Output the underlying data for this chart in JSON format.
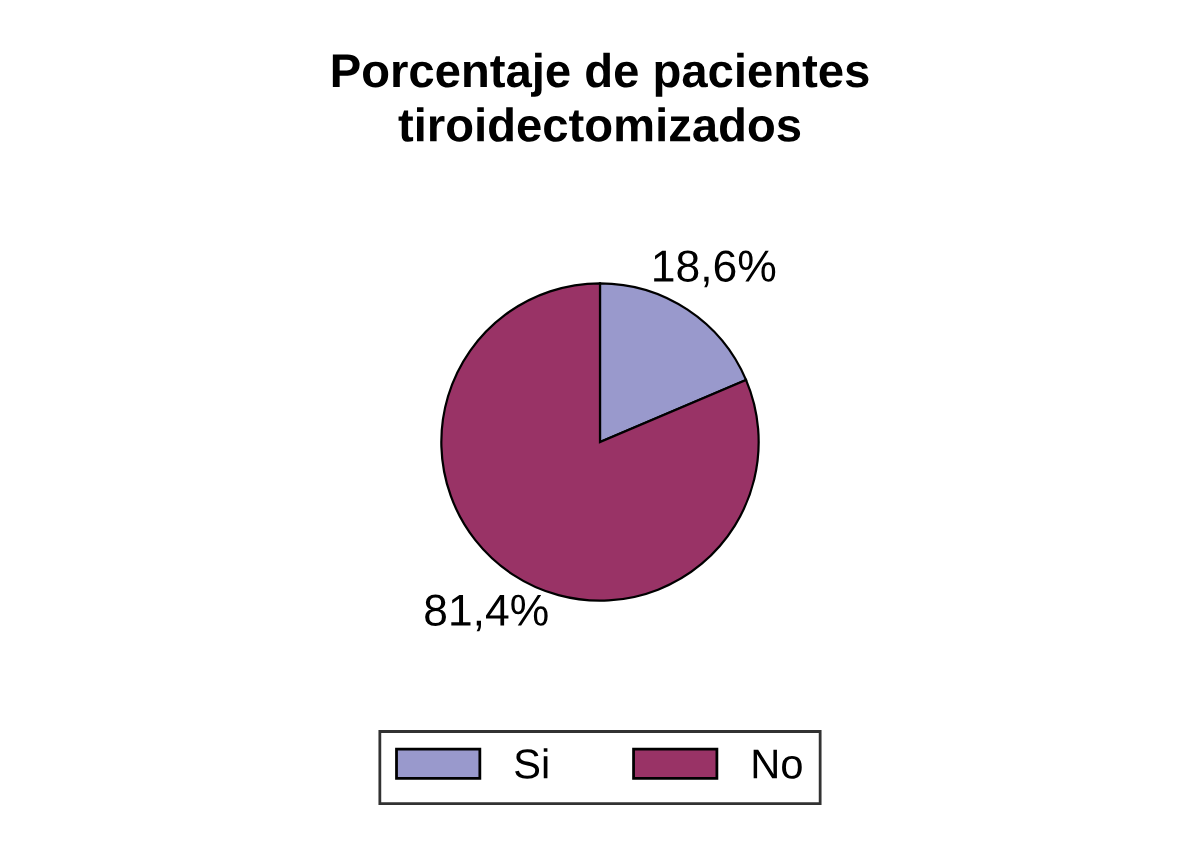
{
  "chart_data": {
    "type": "pie",
    "title": "Porcentaje de pacientes\ntiroidectomizados",
    "categories": [
      "Si",
      "No"
    ],
    "values": [
      18.6,
      81.4
    ],
    "colors": [
      "#9999cc",
      "#993366"
    ],
    "value_labels": [
      "18,6%",
      "81,4%"
    ],
    "legend": "bottom"
  }
}
